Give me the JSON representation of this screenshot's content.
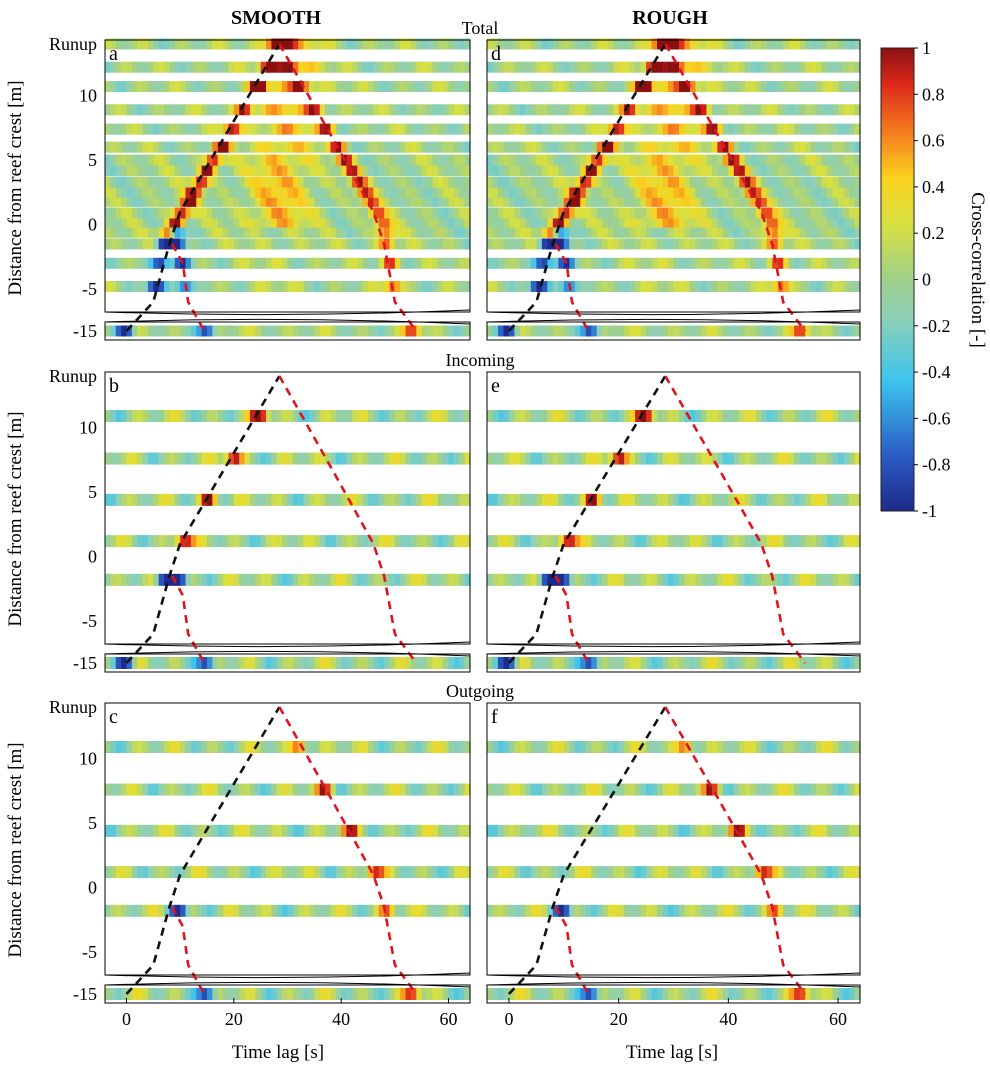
{
  "columns": {
    "left": "SMOOTH",
    "right": "ROUGH"
  },
  "row_titles": [
    "Total",
    "Incoming",
    "Outgoing"
  ],
  "panel_letters": [
    "a",
    "b",
    "c",
    "d",
    "e",
    "f"
  ],
  "ylabel": "Distance from reef crest [m]",
  "xlabel": "Time lag [s]",
  "ytick_labels": [
    "Runup",
    "10",
    "5",
    "0",
    "-5",
    "-15"
  ],
  "xtick_labels": [
    "0",
    "20",
    "40",
    "60"
  ],
  "colorbar": {
    "label": "Cross-correlation [-]",
    "range": [
      -1,
      1
    ],
    "tick_labels": [
      "1",
      "0.8",
      "0.6",
      "0.4",
      "0.2",
      "0",
      "-0.2",
      "-0.4",
      "-0.6",
      "-0.8",
      "-1"
    ],
    "colormap": "jet"
  },
  "chart_data": {
    "type": "heatmap",
    "x_range": [
      -4,
      64
    ],
    "x_ticks": [
      0,
      20,
      40,
      60
    ],
    "y_ticks": [
      "Runup",
      10,
      5,
      0,
      -5,
      -15
    ],
    "y_axis_break": "between -5 and -15",
    "guide_lines": {
      "incoming_black_dashed": [
        [
          0,
          -15
        ],
        [
          5,
          -6
        ],
        [
          8,
          -1.5
        ],
        [
          10,
          1
        ],
        [
          28.5,
          14
        ]
      ],
      "outgoing_red_dashed": [
        [
          28.5,
          14
        ],
        [
          38,
          7
        ],
        [
          46,
          1
        ],
        [
          48,
          -1.5
        ],
        [
          50,
          -6
        ],
        [
          54,
          -15
        ]
      ],
      "reflected_red_dashed_short": [
        [
          8.5,
          -1.5
        ],
        [
          10.5,
          -3
        ],
        [
          11.5,
          -6
        ],
        [
          14.5,
          -15
        ]
      ]
    },
    "panels": [
      {
        "id": "a",
        "column": "SMOOTH",
        "component": "Total",
        "stations": [
          -15,
          -4.8,
          -3,
          -1.5,
          -0.6,
          0.2,
          0.9,
          1.8,
          2.5,
          3.3,
          4.2,
          5.0,
          6.0,
          7.4,
          8.9,
          10.7,
          12.2,
          14
        ]
      },
      {
        "id": "d",
        "column": "ROUGH",
        "component": "Total",
        "stations": [
          -15,
          -4.8,
          -3,
          -1.5,
          -0.6,
          0.2,
          0.9,
          1.8,
          2.5,
          3.3,
          4.2,
          5.0,
          6.0,
          7.4,
          8.9,
          10.7,
          12.2,
          14
        ]
      },
      {
        "id": "b",
        "column": "SMOOTH",
        "component": "Incoming",
        "stations": [
          -15,
          -1.8,
          1.2,
          4.4,
          7.6,
          10.9
        ]
      },
      {
        "id": "e",
        "column": "ROUGH",
        "component": "Incoming",
        "stations": [
          -15,
          -1.8,
          1.2,
          4.4,
          7.6,
          10.9
        ]
      },
      {
        "id": "c",
        "column": "SMOOTH",
        "component": "Outgoing",
        "stations": [
          -15,
          -1.8,
          1.2,
          4.4,
          7.6,
          10.9
        ]
      },
      {
        "id": "f",
        "column": "ROUGH",
        "component": "Outgoing",
        "stations": [
          -15,
          -1.8,
          1.2,
          4.4,
          7.6,
          10.9
        ]
      }
    ]
  }
}
